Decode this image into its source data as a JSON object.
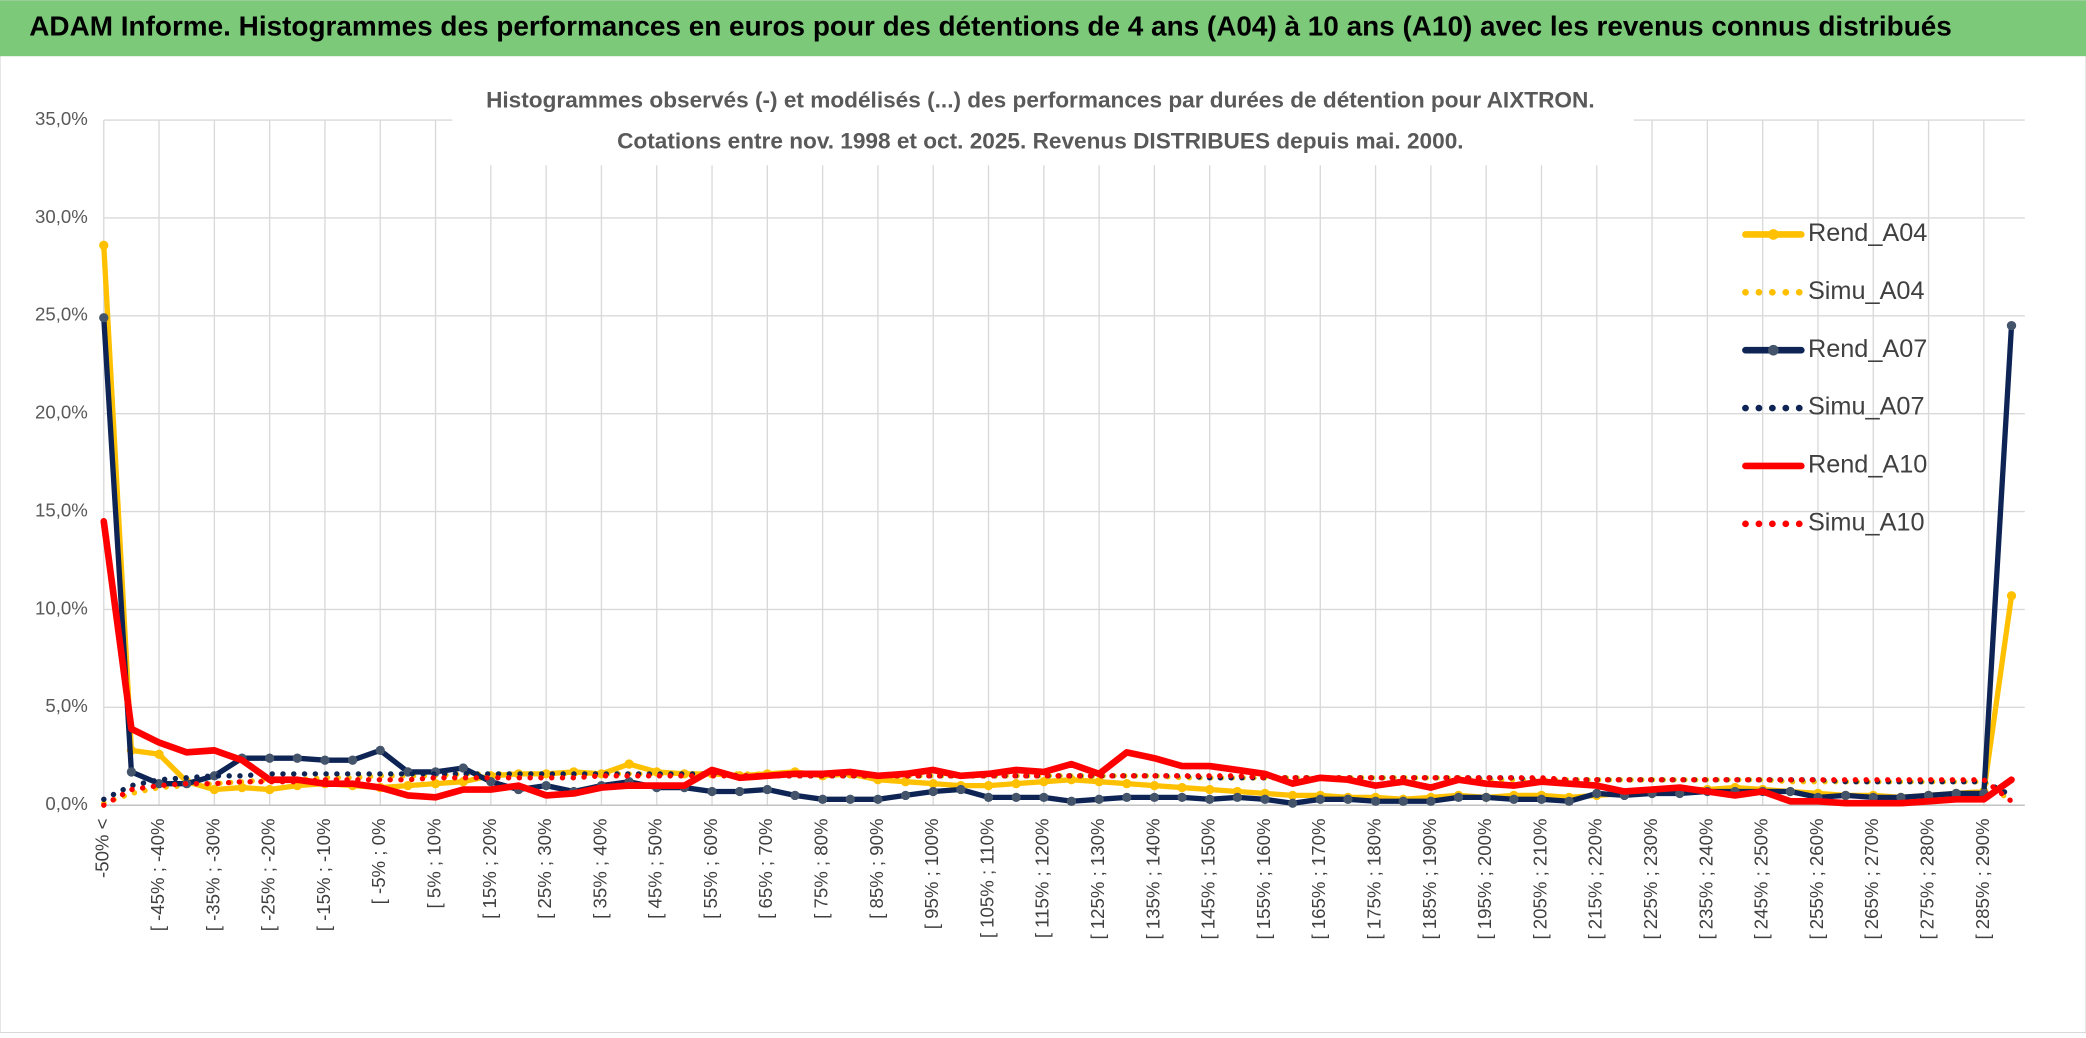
{
  "page_title": "ADAM Informe. Histogrammes des performances en euros pour des détentions de 4 ans (A04) à 10 ans (A10) avec les revenus connus distribués",
  "chart_data": {
    "type": "line",
    "title": "Histogrammes observés (-) et modélisés (...) des performances par durées de détention pour AIXTRON.",
    "subtitle": "Cotations entre nov. 1998 et oct. 2025. Revenus DISTRIBUES depuis mai. 2000.",
    "categories": [
      "-50% <",
      null,
      "[ -45% ; -40%",
      null,
      "[ -35% ; -30%",
      null,
      "[ -25% ; -20%",
      null,
      "[ -15% ; -10%",
      null,
      "[ -5% ; 0%",
      null,
      "[ 5% ; 10%",
      null,
      "[ 15% ; 20%",
      null,
      "[ 25% ; 30%",
      null,
      "[ 35% ; 40%",
      null,
      "[ 45% ; 50%",
      null,
      "[ 55% ; 60%",
      null,
      "[ 65% ; 70%",
      null,
      "[ 75% ; 80%",
      null,
      "[ 85% ; 90%",
      null,
      "[ 95% ; 100%",
      null,
      "[ 105% ; 110%",
      null,
      "[ 115% ; 120%",
      null,
      "[ 125% ; 130%",
      null,
      "[ 135% ; 140%",
      null,
      "[ 145% ; 150%",
      null,
      "[ 155% ; 160%",
      null,
      "[ 165% ; 170%",
      null,
      "[ 175% ; 180%",
      null,
      "[ 185% ; 190%",
      null,
      "[ 195% ; 200%",
      null,
      "[ 205% ; 210%",
      null,
      "[ 215% ; 220%",
      null,
      "[ 225% ; 230%",
      null,
      "[ 235% ; 240%",
      null,
      "[ 245% ; 250%",
      null,
      "[ 255% ; 260%",
      null,
      "[ 265% ; 270%",
      null,
      "[ 275% ; 280%",
      null,
      "[ 285% ; 290%",
      null
    ],
    "ylim": [
      0,
      35
    ],
    "yticks": [
      {
        "value": 0,
        "label": "0,0%"
      },
      {
        "value": 5,
        "label": "5,0%"
      },
      {
        "value": 10,
        "label": "10,0%"
      },
      {
        "value": 15,
        "label": "15,0%"
      },
      {
        "value": 20,
        "label": "20,0%"
      },
      {
        "value": 25,
        "label": "25,0%"
      },
      {
        "value": 30,
        "label": "30,0%"
      },
      {
        "value": 35,
        "label": "35,0%"
      }
    ],
    "grid": true,
    "legend": "right",
    "series": [
      {
        "name": "Rend_A04",
        "color": "#ffc000",
        "style": "solid",
        "markers": true,
        "values": [
          28.6,
          2.8,
          2.6,
          1.2,
          0.8,
          0.9,
          0.8,
          1.0,
          1.1,
          1.0,
          0.9,
          1.0,
          1.1,
          1.2,
          1.5,
          1.6,
          1.6,
          1.7,
          1.6,
          2.1,
          1.7,
          1.6,
          1.6,
          1.5,
          1.6,
          1.7,
          1.5,
          1.6,
          1.3,
          1.2,
          1.1,
          1.0,
          1.0,
          1.1,
          1.2,
          1.3,
          1.2,
          1.1,
          1.0,
          0.9,
          0.8,
          0.7,
          0.6,
          0.5,
          0.5,
          0.4,
          0.4,
          0.3,
          0.4,
          0.5,
          0.4,
          0.5,
          0.5,
          0.4,
          0.5,
          0.6,
          0.7,
          0.8,
          0.8,
          0.9,
          0.8,
          0.7,
          0.6,
          0.5,
          0.5,
          0.4,
          0.5,
          0.6,
          0.7,
          10.7
        ]
      },
      {
        "name": "Simu_A04",
        "color": "#ffc000",
        "style": "dotted",
        "markers": false,
        "values": [
          0.1,
          0.6,
          0.9,
          1.0,
          1.1,
          1.2,
          1.3,
          1.3,
          1.4,
          1.4,
          1.5,
          1.5,
          1.5,
          1.6,
          1.6,
          1.6,
          1.6,
          1.6,
          1.6,
          1.6,
          1.6,
          1.6,
          1.6,
          1.6,
          1.6,
          1.6,
          1.6,
          1.6,
          1.5,
          1.5,
          1.5,
          1.5,
          1.5,
          1.5,
          1.5,
          1.5,
          1.5,
          1.5,
          1.5,
          1.4,
          1.4,
          1.4,
          1.4,
          1.4,
          1.4,
          1.4,
          1.4,
          1.4,
          1.4,
          1.4,
          1.3,
          1.3,
          1.3,
          1.3,
          1.3,
          1.3,
          1.3,
          1.3,
          1.3,
          1.3,
          1.3,
          1.2,
          1.2,
          1.2,
          1.2,
          1.2,
          1.2,
          1.2,
          1.2,
          0.2
        ]
      },
      {
        "name": "Rend_A07",
        "color": "#0d2454",
        "style": "solid",
        "markers": true,
        "values": [
          24.9,
          1.7,
          1.1,
          1.1,
          1.5,
          2.4,
          2.4,
          2.4,
          2.3,
          2.3,
          2.8,
          1.7,
          1.7,
          1.9,
          1.2,
          0.8,
          1.0,
          0.7,
          1.0,
          1.2,
          0.9,
          0.9,
          0.7,
          0.7,
          0.8,
          0.5,
          0.3,
          0.3,
          0.3,
          0.5,
          0.7,
          0.8,
          0.4,
          0.4,
          0.4,
          0.2,
          0.3,
          0.4,
          0.4,
          0.4,
          0.3,
          0.4,
          0.3,
          0.1,
          0.3,
          0.3,
          0.2,
          0.2,
          0.2,
          0.4,
          0.4,
          0.3,
          0.3,
          0.2,
          0.6,
          0.5,
          0.6,
          0.6,
          0.7,
          0.7,
          0.7,
          0.7,
          0.4,
          0.5,
          0.4,
          0.4,
          0.5,
          0.6,
          0.6,
          24.5
        ]
      },
      {
        "name": "Simu_A07",
        "color": "#0d2454",
        "style": "dotted",
        "markers": false,
        "values": [
          0.3,
          1.0,
          1.3,
          1.4,
          1.5,
          1.5,
          1.6,
          1.6,
          1.6,
          1.6,
          1.6,
          1.6,
          1.6,
          1.6,
          1.6,
          1.6,
          1.6,
          1.6,
          1.6,
          1.6,
          1.6,
          1.6,
          1.6,
          1.5,
          1.5,
          1.5,
          1.5,
          1.5,
          1.5,
          1.5,
          1.5,
          1.5,
          1.5,
          1.5,
          1.5,
          1.5,
          1.5,
          1.5,
          1.5,
          1.5,
          1.4,
          1.4,
          1.4,
          1.4,
          1.4,
          1.4,
          1.4,
          1.4,
          1.4,
          1.4,
          1.4,
          1.4,
          1.3,
          1.3,
          1.3,
          1.3,
          1.3,
          1.3,
          1.3,
          1.3,
          1.3,
          1.3,
          1.3,
          1.2,
          1.2,
          1.2,
          1.2,
          1.2,
          1.2,
          0.5
        ]
      },
      {
        "name": "Rend_A10",
        "color": "#ff0000",
        "style": "solid",
        "markers": false,
        "values": [
          14.5,
          3.9,
          3.2,
          2.7,
          2.8,
          2.3,
          1.3,
          1.3,
          1.1,
          1.1,
          0.9,
          0.5,
          0.4,
          0.8,
          0.8,
          1.0,
          0.5,
          0.6,
          0.9,
          1.0,
          1.0,
          1.0,
          1.8,
          1.4,
          1.5,
          1.6,
          1.6,
          1.7,
          1.5,
          1.6,
          1.8,
          1.5,
          1.6,
          1.8,
          1.7,
          2.1,
          1.6,
          2.7,
          2.4,
          2.0,
          2.0,
          1.8,
          1.6,
          1.1,
          1.4,
          1.3,
          1.0,
          1.2,
          0.9,
          1.3,
          1.1,
          1.0,
          1.2,
          1.1,
          1.0,
          0.7,
          0.8,
          0.9,
          0.7,
          0.5,
          0.7,
          0.2,
          0.2,
          0.1,
          0.1,
          0.1,
          0.2,
          0.3,
          0.3,
          1.3
        ]
      },
      {
        "name": "Simu_A10",
        "color": "#ff0000",
        "style": "dotted",
        "markers": false,
        "values": [
          0.0,
          0.8,
          1.0,
          1.1,
          1.1,
          1.2,
          1.2,
          1.2,
          1.3,
          1.3,
          1.3,
          1.3,
          1.4,
          1.4,
          1.4,
          1.4,
          1.4,
          1.4,
          1.5,
          1.5,
          1.5,
          1.5,
          1.5,
          1.5,
          1.5,
          1.5,
          1.5,
          1.5,
          1.5,
          1.5,
          1.5,
          1.5,
          1.5,
          1.5,
          1.5,
          1.5,
          1.5,
          1.5,
          1.5,
          1.5,
          1.5,
          1.5,
          1.4,
          1.4,
          1.4,
          1.4,
          1.4,
          1.4,
          1.4,
          1.4,
          1.4,
          1.4,
          1.4,
          1.3,
          1.3,
          1.3,
          1.3,
          1.3,
          1.3,
          1.3,
          1.3,
          1.3,
          1.3,
          1.3,
          1.3,
          1.3,
          1.3,
          1.3,
          1.3,
          0.2
        ]
      }
    ]
  }
}
